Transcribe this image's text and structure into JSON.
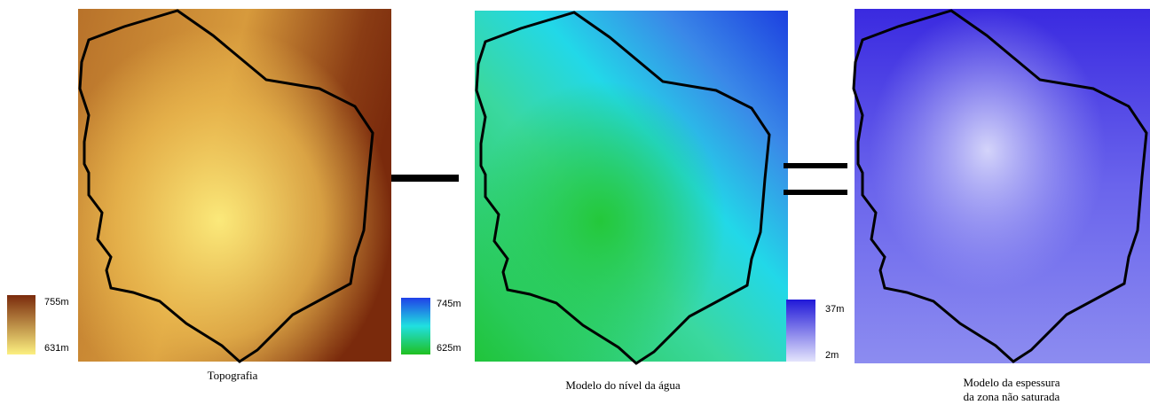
{
  "panels": [
    {
      "caption": [
        "Topografia"
      ],
      "legend_max": "755m",
      "legend_min": "631m"
    },
    {
      "caption": [
        "Modelo do nível da água"
      ],
      "legend_max": "745m",
      "legend_min": "625m"
    },
    {
      "caption": [
        "Modelo da espessura",
        "da zona não saturada"
      ],
      "legend_max": "37m",
      "legend_min": "2m"
    }
  ]
}
